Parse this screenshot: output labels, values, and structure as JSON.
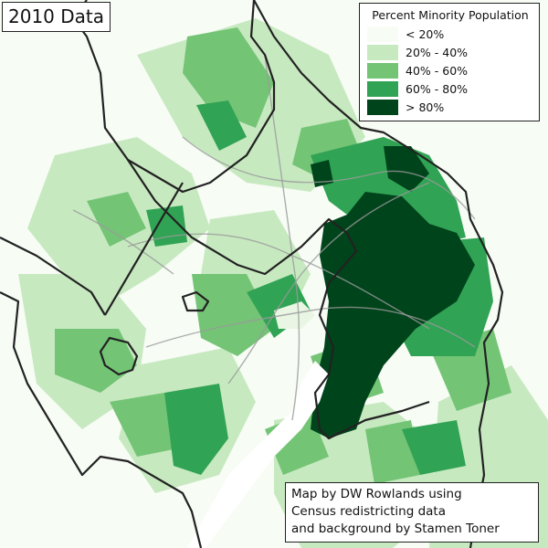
{
  "map_title": "2010 Data",
  "legend": {
    "title": "Percent Minority Population",
    "items": [
      {
        "label": "< 20%",
        "color": "#f7fcf5"
      },
      {
        "label": "20% - 40%",
        "color": "#c7e9c0"
      },
      {
        "label": "40% - 60%",
        "color": "#74c476"
      },
      {
        "label": "60% - 80%",
        "color": "#31a354"
      },
      {
        "label": "> 80%",
        "color": "#00441b"
      }
    ]
  },
  "credit": {
    "lines": [
      "Map by DW Rowlands using",
      "Census redistricting data",
      "and background by Stamen Toner"
    ]
  },
  "colors": {
    "water": "#ffffff",
    "boundary": "#222222",
    "roads": "#9a9a9a"
  }
}
